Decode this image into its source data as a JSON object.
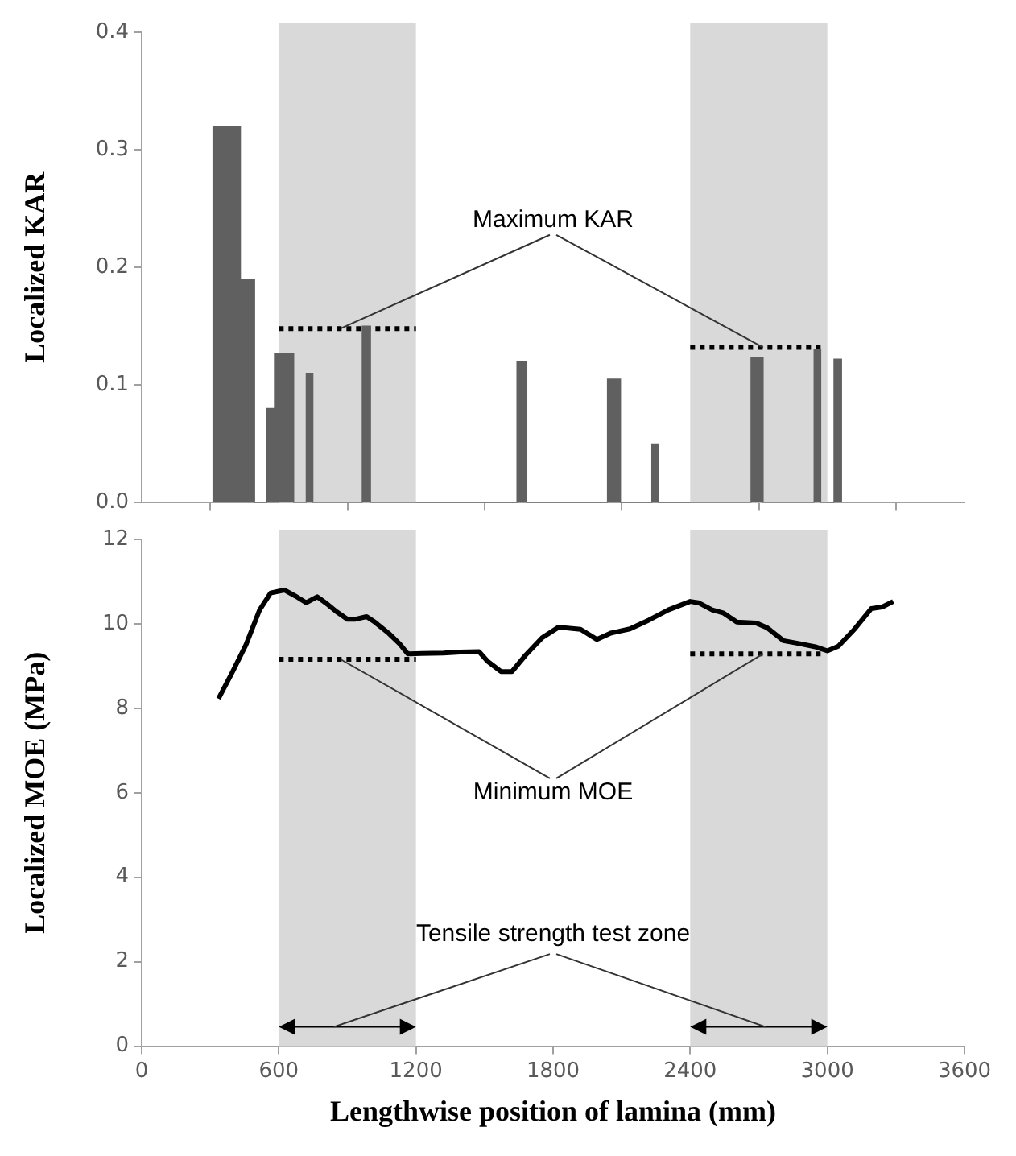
{
  "chart_data": [
    {
      "type": "histogram",
      "ylabel": "Localized KAR",
      "color": "#606060",
      "bins": [
        312,
        432,
        494,
        547,
        581,
        665,
        720,
        749,
        965,
        1001,
        1642,
        1685,
        2038,
        2095,
        2232,
        2261,
        2666,
        2719,
        2942,
        2971,
        3029,
        3062
      ],
      "values": [
        0.32,
        0.19,
        0,
        0.08,
        0.127,
        0,
        0.11,
        0,
        0.15,
        0,
        0.12,
        0,
        0.105,
        0,
        0.05,
        0,
        0.123,
        0,
        0.13,
        0,
        0.122
      ],
      "series": [
        {
          "type": "line",
          "name": "Maximum KAR",
          "color": "#000000",
          "line_style": "dotted",
          "marker": "none",
          "x": [
            600,
            1200,
            1800,
            2400,
            2980
          ],
          "values": [
            0.148,
            0.148,
            null,
            0.132,
            0.132
          ]
        }
      ],
      "bands": [
        {
          "axis": "x",
          "from": 600,
          "to": 1200,
          "color": "#d9d9d9"
        },
        {
          "axis": "x",
          "from": 2400,
          "to": 3000,
          "color": "#d9d9d9"
        }
      ],
      "xlim": [
        0,
        3600
      ],
      "xticks": [
        0,
        600,
        1200,
        1800,
        2400,
        3000,
        3600
      ],
      "ylim": [
        0,
        0.4
      ],
      "yticks": [
        {
          "value": 0,
          "label": "0.0"
        },
        {
          "value": 0.1,
          "label": "0.1"
        },
        {
          "value": 0.2,
          "label": "0.2"
        },
        {
          "value": 0.3,
          "label": "0.3"
        },
        {
          "value": 0.4,
          "label": "0.4"
        }
      ],
      "tick_labels": "y",
      "grid": false,
      "legend": false
    },
    {
      "type": "line",
      "ylabel": "Localized MOE (MPa)",
      "xlabel": "Lengthwise position of lamina (mm)",
      "series": [
        {
          "color": "#000000",
          "line_style": "solid",
          "marker": "none",
          "x": [
            336,
            396,
            456,
            516,
            564,
            624,
            672,
            720,
            768,
            804,
            852,
            900,
            936,
            984,
            1020,
            1080,
            1128,
            1164,
            1224,
            1320,
            1392,
            1476,
            1512,
            1572,
            1620,
            1680,
            1752,
            1824,
            1920,
            1992,
            2052,
            2136,
            2220,
            2304,
            2400,
            2436,
            2496,
            2544,
            2604,
            2688,
            2736,
            2808,
            2880,
            2952,
            3000,
            3048,
            3120,
            3192,
            3240,
            3288
          ],
          "values": [
            8.23,
            8.85,
            9.5,
            10.33,
            10.73,
            10.8,
            10.66,
            10.5,
            10.64,
            10.5,
            10.29,
            10.11,
            10.11,
            10.17,
            10.04,
            9.78,
            9.53,
            9.29,
            9.3,
            9.31,
            9.33,
            9.34,
            9.12,
            8.87,
            8.87,
            9.26,
            9.67,
            9.92,
            9.87,
            9.63,
            9.78,
            9.88,
            10.09,
            10.33,
            10.53,
            10.5,
            10.33,
            10.26,
            10.04,
            10.02,
            9.91,
            9.6,
            9.53,
            9.45,
            9.36,
            9.47,
            9.88,
            10.36,
            10.4,
            10.53
          ]
        },
        {
          "name": "Minimum MOE",
          "color": "#000000",
          "line_style": "dotted",
          "marker": "none",
          "x": [
            600,
            1200,
            1800,
            2400,
            2980
          ],
          "values": [
            9.16,
            9.16,
            null,
            9.29,
            9.29
          ]
        }
      ],
      "bands": [
        {
          "axis": "x",
          "from": 600,
          "to": 1200,
          "color": "#d9d9d9"
        },
        {
          "axis": "x",
          "from": 2400,
          "to": 3000,
          "color": "#d9d9d9"
        }
      ],
      "annotations": [
        "Tensile strength test zone"
      ],
      "xlim": [
        0,
        3600
      ],
      "xticks": [
        0,
        600,
        1200,
        1800,
        2400,
        3000,
        3600
      ],
      "ylim": [
        0,
        12
      ],
      "yticks": [
        0,
        2,
        4,
        6,
        8,
        10,
        12
      ],
      "grid": false,
      "legend": false
    }
  ]
}
